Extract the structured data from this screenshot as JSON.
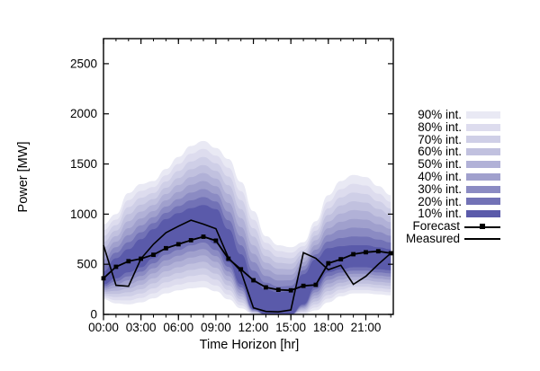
{
  "figure": {
    "background": "#ffffff",
    "axis_color": "#000000",
    "line_color": "#000000"
  },
  "axes": {
    "xlabel": "Time Horizon [hr]",
    "ylabel": "Power [MW]",
    "x_major_hours": [
      0,
      3,
      6,
      9,
      12,
      15,
      18,
      21
    ],
    "x_major_labels": [
      "00:00",
      "03:00",
      "06:00",
      "09:00",
      "12:00",
      "15:00",
      "18:00",
      "21:00"
    ],
    "x_minor_hours": [
      0,
      1,
      2,
      3,
      4,
      5,
      6,
      7,
      8,
      9,
      10,
      11,
      12,
      13,
      14,
      15,
      16,
      17,
      18,
      19,
      20,
      21,
      22,
      23
    ],
    "y_ticks": [
      0,
      500,
      1000,
      1500,
      2000,
      2500
    ],
    "y_tick_labels": [
      "0",
      "500",
      "1000",
      "1500",
      "2000",
      "2500"
    ]
  },
  "chart_data": {
    "type": "area",
    "subtype": "fan-chart-with-lines",
    "title": "",
    "xlabel": "Time Horizon [hr]",
    "ylabel": "Power [MW]",
    "xlim_hours": [
      0,
      23.2
    ],
    "ylim": [
      0,
      2750
    ],
    "grid": false,
    "legend_position": "right-outside",
    "x_hours": [
      0,
      1,
      2,
      3,
      4,
      5,
      6,
      7,
      8,
      9,
      10,
      11,
      12,
      13,
      14,
      15,
      16,
      17,
      18,
      19,
      20,
      21,
      22,
      23
    ],
    "series": [
      {
        "name": "Forecast",
        "style": "line-with-square-markers",
        "color": "#000000",
        "values": [
          360,
          475,
          530,
          555,
          595,
          660,
          700,
          740,
          775,
          735,
          555,
          450,
          340,
          270,
          245,
          240,
          285,
          295,
          510,
          550,
          600,
          620,
          630,
          610
        ]
      },
      {
        "name": "Measured",
        "style": "line",
        "color": "#000000",
        "values": [
          690,
          290,
          280,
          555,
          700,
          815,
          880,
          940,
          900,
          855,
          565,
          430,
          65,
          30,
          25,
          45,
          615,
          560,
          445,
          490,
          300,
          380,
          500,
          610
        ]
      }
    ],
    "bands": {
      "description": "Nested prediction intervals 10%-90%, darkest = 10%",
      "levels": [
        {
          "label": "90% int.",
          "level": 90,
          "color": "#e9e9f4"
        },
        {
          "label": "80% int.",
          "level": 80,
          "color": "#dddcee"
        },
        {
          "label": "70% int.",
          "level": 70,
          "color": "#cfcfe7"
        },
        {
          "label": "60% int.",
          "level": 60,
          "color": "#c1c1df"
        },
        {
          "label": "50% int.",
          "level": 50,
          "color": "#b1b1d7"
        },
        {
          "label": "40% int.",
          "level": 40,
          "color": "#a0a0cd"
        },
        {
          "label": "30% int.",
          "level": 30,
          "color": "#8b8bc3"
        },
        {
          "label": "20% int.",
          "level": 20,
          "color": "#7272b6"
        },
        {
          "label": "10% int.",
          "level": 10,
          "color": "#5a5aaa"
        }
      ],
      "envelope_90_upper": [
        900,
        1000,
        1210,
        1300,
        1330,
        1450,
        1570,
        1680,
        1730,
        1660,
        1550,
        1320,
        1030,
        780,
        690,
        670,
        720,
        930,
        1190,
        1330,
        1390,
        1370,
        1280,
        1190
      ],
      "envelope_90_lower": [
        150,
        110,
        100,
        120,
        160,
        210,
        240,
        260,
        270,
        230,
        150,
        60,
        0,
        0,
        0,
        0,
        0,
        40,
        120,
        180,
        210,
        210,
        200,
        190
      ],
      "envelope_10_upper": [
        430,
        560,
        650,
        750,
        850,
        950,
        1010,
        1060,
        1090,
        1050,
        850,
        600,
        350,
        250,
        220,
        230,
        400,
        550,
        660,
        680,
        690,
        690,
        670,
        650
      ],
      "envelope_10_lower": [
        300,
        360,
        420,
        470,
        560,
        650,
        700,
        750,
        780,
        700,
        520,
        300,
        50,
        0,
        0,
        0,
        100,
        280,
        420,
        450,
        470,
        470,
        450,
        440
      ]
    },
    "legend_entries": [
      {
        "label": "90% int.",
        "type": "band",
        "color": "#e9e9f4"
      },
      {
        "label": "80% int.",
        "type": "band",
        "color": "#dddcee"
      },
      {
        "label": "70% int.",
        "type": "band",
        "color": "#cfcfe7"
      },
      {
        "label": "60% int.",
        "type": "band",
        "color": "#c1c1df"
      },
      {
        "label": "50% int.",
        "type": "band",
        "color": "#b1b1d7"
      },
      {
        "label": "40% int.",
        "type": "band",
        "color": "#a0a0cd"
      },
      {
        "label": "30% int.",
        "type": "band",
        "color": "#8b8bc3"
      },
      {
        "label": "20% int.",
        "type": "band",
        "color": "#7272b6"
      },
      {
        "label": "10% int.",
        "type": "band",
        "color": "#5a5aaa"
      },
      {
        "label": "Forecast",
        "type": "line-marker",
        "color": "#000000"
      },
      {
        "label": "Measured",
        "type": "line",
        "color": "#000000"
      }
    ]
  }
}
